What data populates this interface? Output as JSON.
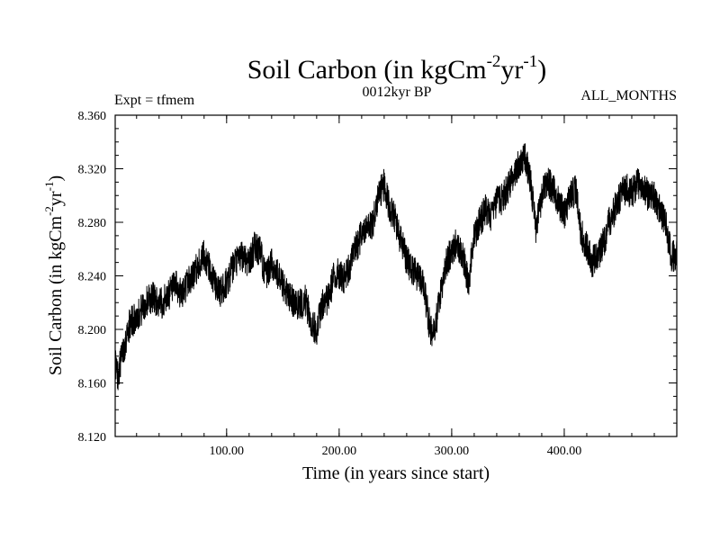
{
  "chart_data": {
    "type": "line",
    "title": {
      "main": "Soil Carbon (in kgCm",
      "sup1": "-2",
      "mid": "yr",
      "sup2": "-1",
      "end": ")"
    },
    "subtitle_left": "Expt = tfmem",
    "subtitle_center": "0012kyr BP",
    "subtitle_right": "ALL_MONTHS",
    "xlabel": "Time (in years since start)",
    "ylabel": {
      "main": "Soil Carbon (in kgCm",
      "sup1": "-2",
      "mid": "yr",
      "sup2": "-1",
      "end": ")"
    },
    "xlim": [
      1,
      500
    ],
    "ylim": [
      8.12,
      8.36
    ],
    "x_ticks": [
      100,
      200,
      300,
      400
    ],
    "x_tick_labels": [
      "100.00",
      "200.00",
      "300.00",
      "400.00"
    ],
    "y_ticks": [
      8.12,
      8.16,
      8.2,
      8.24,
      8.28,
      8.32,
      8.36
    ],
    "y_tick_labels": [
      "8.120",
      "8.160",
      "8.200",
      "8.240",
      "8.280",
      "8.320",
      "8.360"
    ],
    "x_minor_step": 20,
    "y_minor_step": 0.01,
    "series": [
      {
        "name": "Soil Carbon",
        "color": "#000000",
        "noise_amplitude": 0.012,
        "x": [
          1,
          3,
          5,
          8,
          10,
          12,
          15,
          20,
          25,
          30,
          35,
          40,
          45,
          50,
          55,
          60,
          65,
          70,
          75,
          80,
          85,
          90,
          95,
          100,
          105,
          110,
          115,
          120,
          125,
          130,
          135,
          140,
          145,
          150,
          155,
          160,
          165,
          170,
          175,
          180,
          185,
          190,
          195,
          200,
          205,
          210,
          215,
          220,
          225,
          230,
          235,
          240,
          245,
          250,
          255,
          260,
          265,
          270,
          275,
          280,
          283,
          285,
          290,
          295,
          300,
          305,
          310,
          315,
          320,
          325,
          330,
          335,
          340,
          345,
          350,
          355,
          360,
          365,
          370,
          375,
          380,
          385,
          390,
          395,
          400,
          405,
          410,
          415,
          420,
          425,
          430,
          435,
          440,
          445,
          450,
          455,
          460,
          465,
          470,
          475,
          480,
          485,
          490,
          495,
          500
        ],
        "values": [
          8.178,
          8.165,
          8.172,
          8.185,
          8.19,
          8.2,
          8.205,
          8.21,
          8.215,
          8.222,
          8.225,
          8.218,
          8.222,
          8.228,
          8.232,
          8.225,
          8.235,
          8.24,
          8.248,
          8.255,
          8.245,
          8.232,
          8.228,
          8.235,
          8.245,
          8.252,
          8.255,
          8.25,
          8.262,
          8.258,
          8.238,
          8.25,
          8.242,
          8.232,
          8.225,
          8.22,
          8.218,
          8.222,
          8.205,
          8.2,
          8.218,
          8.222,
          8.238,
          8.242,
          8.238,
          8.248,
          8.262,
          8.27,
          8.275,
          8.28,
          8.3,
          8.308,
          8.29,
          8.282,
          8.265,
          8.252,
          8.245,
          8.24,
          8.232,
          8.205,
          8.195,
          8.2,
          8.225,
          8.248,
          8.26,
          8.265,
          8.255,
          8.235,
          8.27,
          8.28,
          8.29,
          8.285,
          8.295,
          8.298,
          8.305,
          8.315,
          8.325,
          8.33,
          8.31,
          8.275,
          8.3,
          8.31,
          8.305,
          8.295,
          8.285,
          8.298,
          8.305,
          8.272,
          8.262,
          8.25,
          8.255,
          8.265,
          8.28,
          8.29,
          8.3,
          8.305,
          8.302,
          8.31,
          8.305,
          8.3,
          8.3,
          8.288,
          8.28,
          8.255,
          8.255
        ]
      }
    ]
  }
}
